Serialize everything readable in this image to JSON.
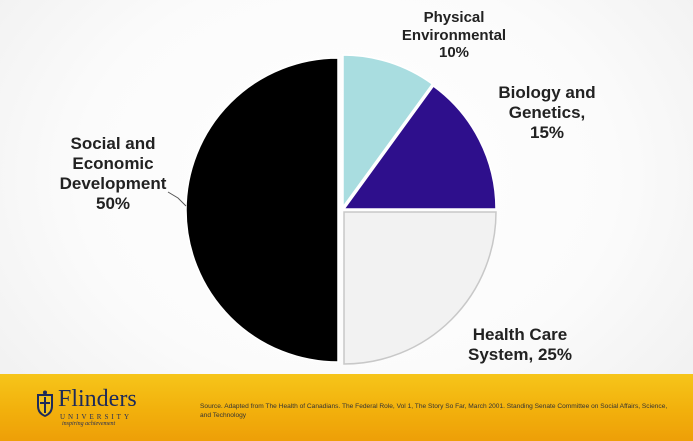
{
  "chart_data": {
    "type": "pie",
    "title": "",
    "slices": [
      {
        "label": "Physical Environmental",
        "value": 10,
        "color": "#a9dde0"
      },
      {
        "label": "Biology and Genetics",
        "value": 15,
        "color": "#2e0f8c"
      },
      {
        "label": "Health Care System",
        "value": 25,
        "color": "#f2f2f2"
      },
      {
        "label": "Social and Economic Development",
        "value": 50,
        "color": "#000000"
      }
    ],
    "labels": {
      "physical": [
        "Physical",
        "Environmental",
        "10%"
      ],
      "biology": [
        "Biology and",
        "Genetics,",
        "15%"
      ],
      "health": [
        "Health Care",
        "System, 25%"
      ],
      "social": [
        "Social and",
        "Economic",
        "Development",
        "50%"
      ]
    }
  },
  "footer": {
    "logo_name": "Flinders",
    "logo_sub": "UNIVERSITY",
    "logo_tagline": "inspiring achievement",
    "source": "Source. Adapted from The Health of Canadians. The Federal Role, Vol 1, The Story So Far, March 2001. Standing Senate Committee on Social Affairs, Science, and Technology"
  }
}
